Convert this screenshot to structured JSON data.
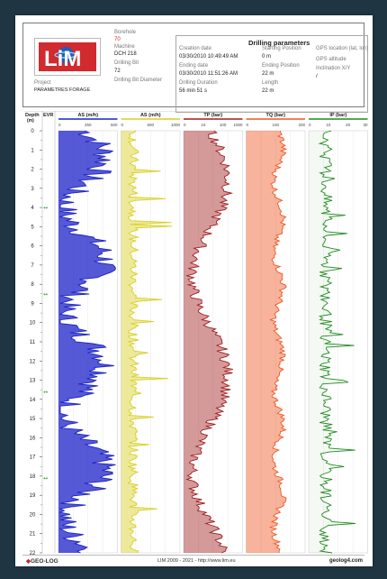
{
  "header": {
    "logo_text": "LiM",
    "project_label": "Project",
    "project_value": "PARAMETRES FORAGE",
    "borehole_label": "Borehole",
    "borehole_value": "70",
    "machine_label": "Machine",
    "machine_value": "DCH 218",
    "drilling_bit_label": "Drilling Bit",
    "drilling_bit_value": "72",
    "drilling_bit_diameter_label": "Drilling Bit Diameter",
    "params_title": "Drilling parameters",
    "creation_date_label": "Creation date",
    "creation_date_value": "03/30/2010 10:49:49 AM",
    "ending_date_label": "Ending date",
    "ending_date_value": "03/30/2010 11:51:26 AM",
    "drilling_duration_label": "Drilling Duration",
    "drilling_duration_value": "56 min 51 s",
    "starting_position_label": "Starting Position",
    "starting_position_value": "0 m",
    "ending_position_label": "Ending Position",
    "ending_position_value": "22 m",
    "length_label": "Length",
    "length_value": "22 m",
    "gps_location_label": "GPS location (lat, lon)",
    "gps_altitude_label": "GPS altitude",
    "inclination_label": "Inclination X/Y",
    "inclination_value": "/"
  },
  "log": {
    "depth_label": "Depth",
    "depth_unit": "(m)",
    "evr_label": "EVR",
    "depth_ticks": [
      "0",
      "1",
      "2",
      "3",
      "4",
      "5",
      "6",
      "7",
      "8",
      "9",
      "10",
      "11",
      "12",
      "13",
      "14",
      "15",
      "16",
      "17",
      "18",
      "19",
      "20",
      "21",
      "22"
    ],
    "depth_max": 22,
    "evr_markers": [
      4,
      8.5,
      13.6,
      18.1
    ],
    "tracks": [
      {
        "name": "AS (m/h)",
        "color": "#1c22c8",
        "scale_labels": [
          "0",
          "250",
          "500"
        ]
      },
      {
        "name": "AS (m/h)",
        "color": "#d8cf21",
        "scale_labels": [
          "0",
          "500",
          "1000"
        ]
      },
      {
        "name": "TP (bar)",
        "color": "#a01e1e",
        "scale_labels": [
          "0",
          "10",
          "100",
          "1000"
        ]
      },
      {
        "name": "TQ (bar)",
        "color": "#ee5722",
        "scale_labels": [
          "0",
          "100",
          "200"
        ]
      },
      {
        "name": "IP (bar)",
        "color": "#1f8a1f",
        "scale_labels": [
          "0",
          "10",
          "20",
          "30"
        ]
      }
    ]
  },
  "footer": {
    "left": "GEO-LOG",
    "center": "LIM 2009 - 2021 - http://www.lim.eu",
    "right": "geolog4.com"
  }
}
